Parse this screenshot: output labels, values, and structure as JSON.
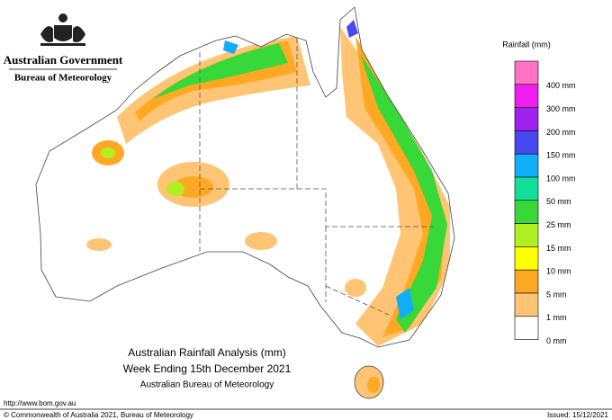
{
  "header": {
    "government": "Australian Government",
    "agency": "Bureau of Meteorology"
  },
  "title": {
    "line1": "Australian Rainfall Analysis (mm)",
    "line2": "Week Ending 15th December 2021",
    "line3": "Australian Bureau of Meteorology"
  },
  "legend": {
    "title": "Rainfall (mm)",
    "items": [
      {
        "label": "400 mm",
        "color": "#ff73c4"
      },
      {
        "label": "300 mm",
        "color": "#f01cf0"
      },
      {
        "label": "200 mm",
        "color": "#a020f0"
      },
      {
        "label": "150 mm",
        "color": "#4848f0"
      },
      {
        "label": "100 mm",
        "color": "#10aef8"
      },
      {
        "label": "50 mm",
        "color": "#10e098"
      },
      {
        "label": "25 mm",
        "color": "#38d838"
      },
      {
        "label": "15 mm",
        "color": "#b0f020"
      },
      {
        "label": "10 mm",
        "color": "#ffff00"
      },
      {
        "label": "5 mm",
        "color": "#ffa824"
      },
      {
        "label": "1 mm",
        "color": "#ffc474"
      },
      {
        "label": "0 mm",
        "color": "#ffffff"
      }
    ]
  },
  "footer": {
    "url": "http://www.bom.gov.au",
    "copyright": "© Commonwealth of Australia 2021, Bureau of Meteorology",
    "issued": "Issued: 15/12/2021"
  }
}
